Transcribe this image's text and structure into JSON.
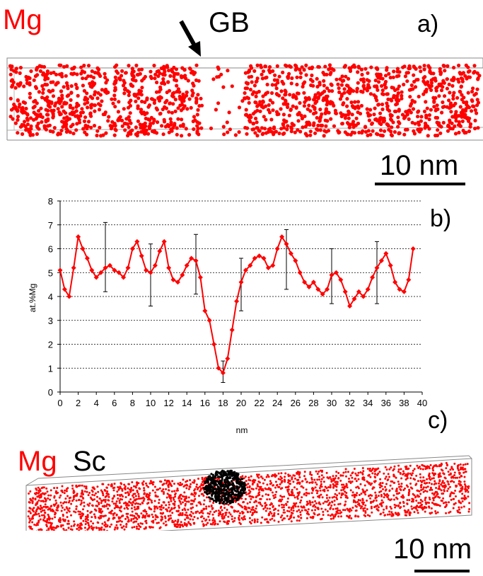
{
  "panel_a": {
    "element_label": "Mg",
    "gb_label": "GB",
    "panel_letter": "a)",
    "scale_bar_label": "10 nm",
    "atom_color": "#ff0000",
    "gb_arrow": "arrow-icon"
  },
  "panel_b": {
    "panel_letter": "b)"
  },
  "panel_c": {
    "element_label_1": "Mg",
    "element_label_2": "Sc",
    "panel_letter": "c)",
    "scale_bar_label": "10 nm",
    "mg_color": "#ff0000",
    "sc_color": "#000000"
  },
  "chart_data": {
    "type": "line",
    "title": "",
    "xlabel": "nm",
    "ylabel": "at.%Mg",
    "xlim": [
      0,
      40
    ],
    "ylim": [
      0,
      8
    ],
    "x_ticks": [
      "0",
      "2",
      "4",
      "6",
      "8",
      "10",
      "12",
      "14",
      "16",
      "18",
      "20",
      "22",
      "24",
      "26",
      "28",
      "30",
      "32",
      "34",
      "36",
      "38",
      "40"
    ],
    "y_ticks": [
      "0",
      "1",
      "2",
      "3",
      "4",
      "5",
      "6",
      "7",
      "8"
    ],
    "grid": "horizontal-dotted",
    "marker": "diamond",
    "color": "#ff0000",
    "series": [
      {
        "x": [
          0,
          0.5,
          1,
          1.5,
          2,
          2.5,
          3,
          3.5,
          4,
          4.5,
          5,
          5.5,
          6,
          6.5,
          7,
          7.5,
          8,
          8.5,
          9,
          9.5,
          10,
          10.5,
          11,
          11.5,
          12,
          12.5,
          13,
          13.5,
          14,
          14.5,
          15,
          15.5,
          16,
          16.5,
          17,
          17.5,
          18,
          18.5,
          19,
          19.5,
          20,
          20.5,
          21,
          21.5,
          22,
          22.5,
          23,
          23.5,
          24,
          24.5,
          25,
          25.5,
          26,
          26.5,
          27,
          27.5,
          28,
          28.5,
          29,
          29.5,
          30,
          30.5,
          31,
          31.5,
          32,
          32.5,
          33,
          33.5,
          34,
          34.5,
          35,
          35.5,
          36,
          36.5,
          37,
          37.5,
          38,
          38.5,
          39
        ],
        "y": [
          5.1,
          4.3,
          4.0,
          5.2,
          6.5,
          6.0,
          5.6,
          5.1,
          4.8,
          5.0,
          5.2,
          5.3,
          5.1,
          5.0,
          4.8,
          5.2,
          6.0,
          6.3,
          5.7,
          5.1,
          5.0,
          5.3,
          5.9,
          6.3,
          5.2,
          4.7,
          4.6,
          4.9,
          5.3,
          5.6,
          5.5,
          4.8,
          3.4,
          3.0,
          2.0,
          1.0,
          0.8,
          1.4,
          2.6,
          3.8,
          4.6,
          5.1,
          5.3,
          5.6,
          5.7,
          5.6,
          5.2,
          5.3,
          6.0,
          6.5,
          6.2,
          5.8,
          5.5,
          5.0,
          4.6,
          4.4,
          4.6,
          4.3,
          4.1,
          4.3,
          4.9,
          5.0,
          4.7,
          4.2,
          3.6,
          3.9,
          4.2,
          4.0,
          4.3,
          4.8,
          5.2,
          5.5,
          5.8,
          5.3,
          4.6,
          4.3,
          4.2,
          4.7,
          6.0
        ]
      }
    ],
    "error_bars": [
      {
        "x": 5,
        "low": 4.2,
        "high": 7.1
      },
      {
        "x": 10,
        "low": 3.6,
        "high": 6.2
      },
      {
        "x": 15,
        "low": 4.1,
        "high": 6.6
      },
      {
        "x": 18,
        "low": 0.4,
        "high": 1.3
      },
      {
        "x": 20,
        "low": 3.4,
        "high": 5.6
      },
      {
        "x": 25,
        "low": 4.3,
        "high": 6.8
      },
      {
        "x": 30,
        "low": 3.7,
        "high": 6.0
      },
      {
        "x": 35,
        "low": 3.7,
        "high": 6.3
      }
    ]
  }
}
